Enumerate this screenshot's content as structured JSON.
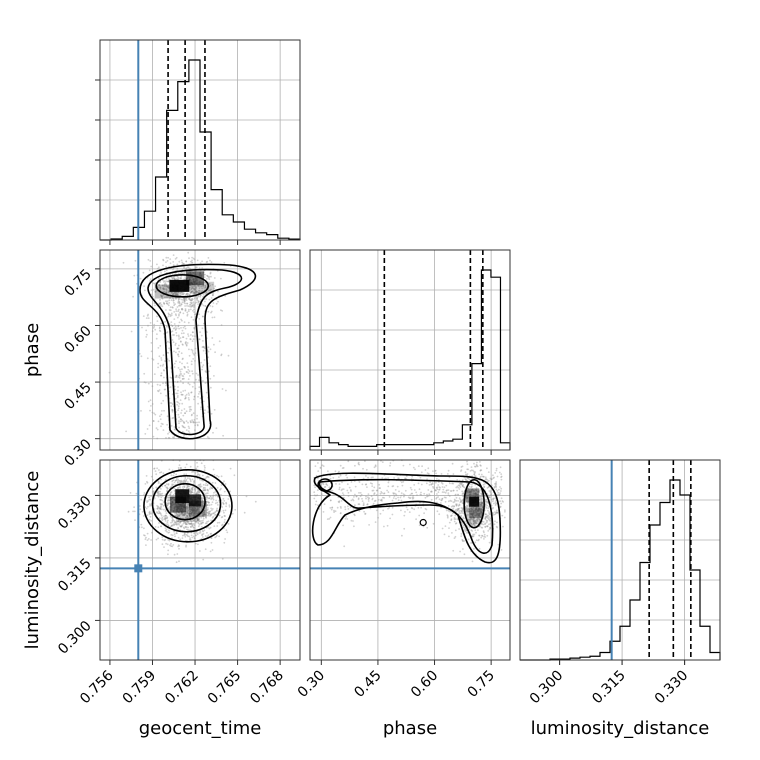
{
  "chart_data": {
    "type": "corner",
    "parameters": [
      {
        "key": "geocent_time",
        "label": "geocent_time",
        "range": [
          0.7553,
          0.7694
        ],
        "ticks": [
          "0.756",
          "0.759",
          "0.762",
          "0.765",
          "0.768"
        ],
        "tick_values": [
          0.756,
          0.759,
          0.762,
          0.765,
          0.768
        ],
        "truth": 0.758,
        "quantiles": [
          0.7601,
          0.7613,
          0.7627
        ]
      },
      {
        "key": "phase",
        "label": "phase",
        "range": [
          0.27,
          0.8
        ],
        "ticks": [
          "0.30",
          "0.45",
          "0.60",
          "0.75"
        ],
        "tick_values": [
          0.3,
          0.45,
          0.6,
          0.75
        ],
        "truth": null,
        "quantiles": [
          0.467,
          0.695,
          0.728
        ]
      },
      {
        "key": "luminosity_distance",
        "label": "luminosity_distance",
        "range": [
          0.2905,
          0.3385
        ],
        "ticks": [
          "0.300",
          "0.315",
          "0.330"
        ],
        "tick_values": [
          0.3,
          0.315,
          0.33
        ],
        "truth": 0.3125,
        "quantiles": [
          0.3215,
          0.3273,
          0.3315
        ]
      }
    ],
    "histograms": {
      "geocent_time": {
        "counts": [
          0,
          0.6,
          2,
          7,
          16,
          35,
          72,
          88,
          100,
          60,
          28,
          14,
          10,
          6,
          4,
          3,
          1,
          0.5
        ]
      },
      "phase": {
        "counts": [
          2,
          7,
          4,
          3,
          2,
          2,
          2,
          3,
          3,
          3,
          3,
          3,
          3,
          4,
          5,
          6,
          14,
          48,
          100,
          96,
          4
        ]
      },
      "luminosity_distance": {
        "counts": [
          0,
          0,
          0,
          0.5,
          0.5,
          1,
          1.5,
          2,
          4,
          10,
          18,
          32,
          52,
          72,
          84,
          96,
          88,
          48,
          18,
          4
        ]
      }
    },
    "grid": true
  }
}
